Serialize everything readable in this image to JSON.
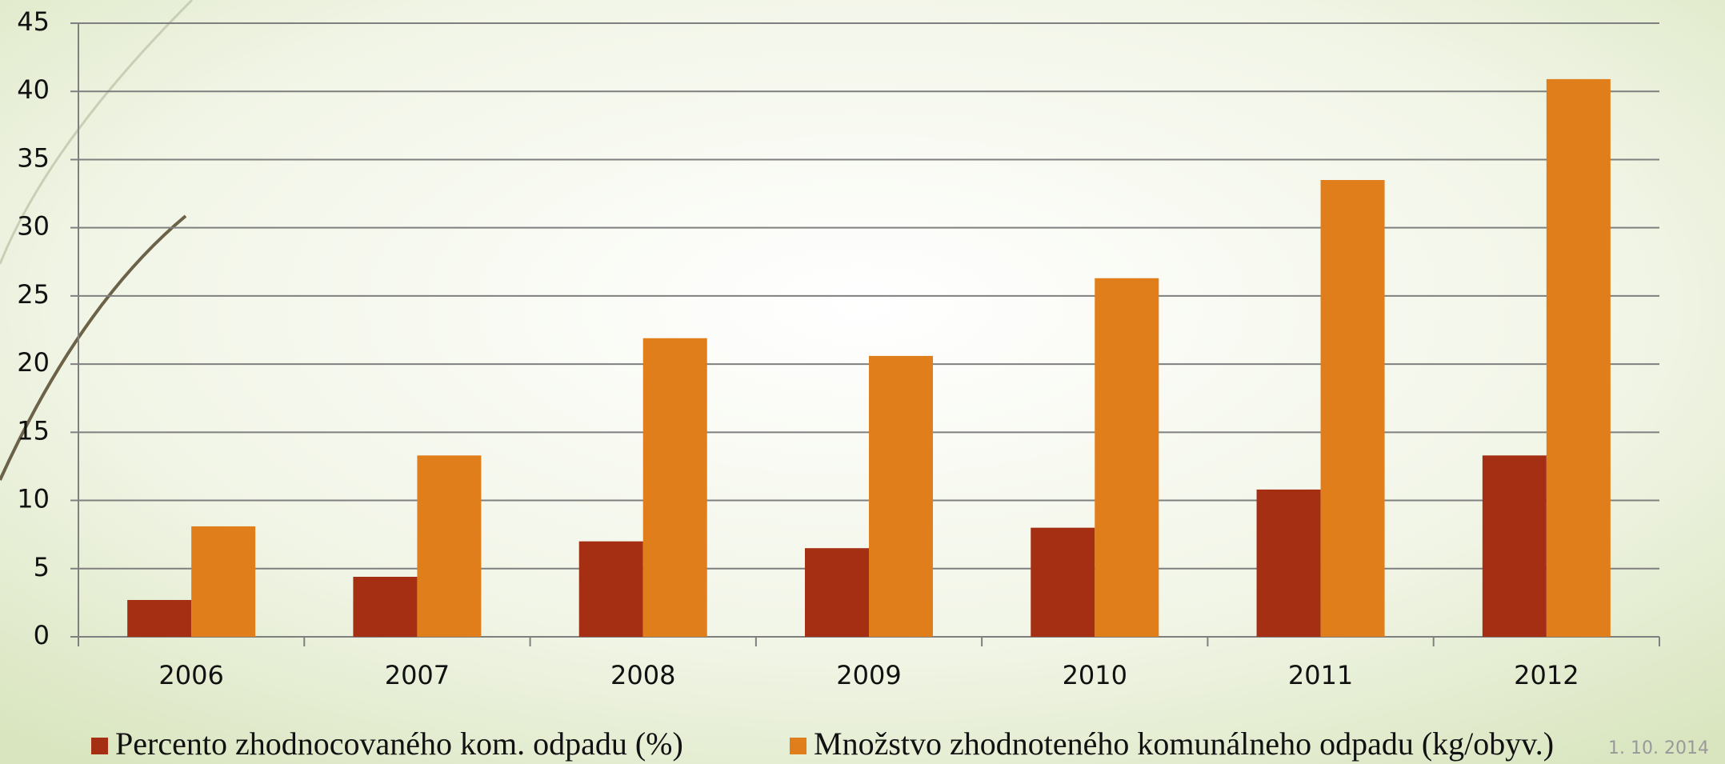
{
  "chart_data": {
    "type": "bar",
    "categories": [
      "2006",
      "2007",
      "2008",
      "2009",
      "2010",
      "2011",
      "2012"
    ],
    "series": [
      {
        "name": "Percento zhodnocovaného kom. odpadu (%)",
        "color": "#a52f12",
        "values": [
          2.7,
          4.4,
          7.0,
          6.5,
          8.0,
          10.8,
          13.3
        ]
      },
      {
        "name": "Množstvo zhodnoteného komunálneho odpadu (kg/obyv.)",
        "color": "#e07e1b",
        "values": [
          8.1,
          13.3,
          21.9,
          20.6,
          26.3,
          33.5,
          40.9
        ]
      }
    ],
    "ylim": [
      0,
      45
    ],
    "yticks": [
      0,
      5,
      10,
      15,
      20,
      25,
      30,
      35,
      40,
      45
    ],
    "grid": true,
    "date": "1. 10. 2014"
  }
}
